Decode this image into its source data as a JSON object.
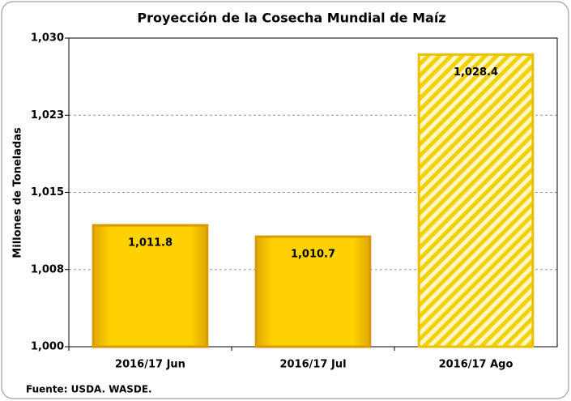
{
  "chart_data": {
    "type": "bar",
    "title": "Proyección de la Cosecha Mundial de Maíz",
    "y_label": "Millones de Toneladas",
    "categories": [
      "2016/17 Jun",
      "2016/17 Jul",
      "2016/17 Ago"
    ],
    "values": [
      1011.8,
      1010.7,
      1028.4
    ],
    "value_labels": [
      "1,011.8",
      "1,010.7",
      "1,028.4"
    ],
    "color": "#f5c400",
    "hatched": [
      false,
      false,
      true
    ],
    "ylim": [
      1000,
      1030
    ],
    "yticks": [
      {
        "value": 1000,
        "label": "1,000"
      },
      {
        "value": 1007.5,
        "label": "1,008"
      },
      {
        "value": 1015,
        "label": "1,015"
      },
      {
        "value": 1022.5,
        "label": "1,023"
      },
      {
        "value": 1030,
        "label": "1,030"
      }
    ],
    "grid": true,
    "source": "Fuente: USDA.  WASDE."
  }
}
